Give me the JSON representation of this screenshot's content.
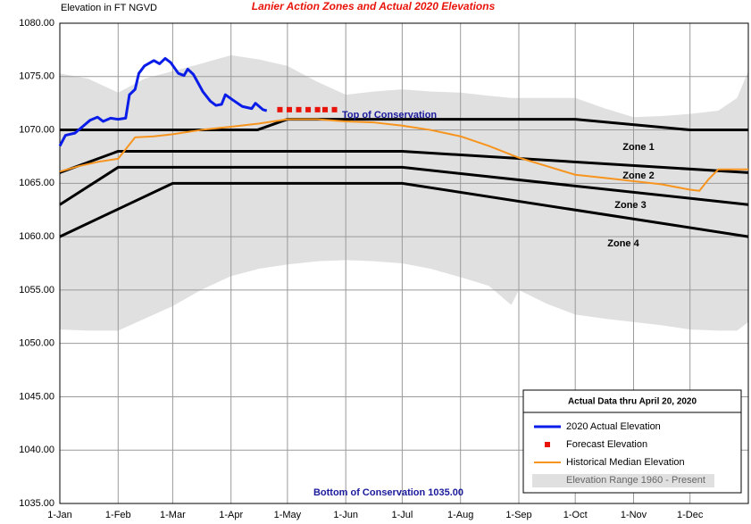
{
  "chart_data": {
    "type": "line",
    "title": "Lanier Action Zones and Actual 2020 Elevations",
    "y_label": "Elevation in FT NGVD",
    "xlim": [
      0,
      366
    ],
    "xticks": [
      {
        "value": 0,
        "label": "1-Jan"
      },
      {
        "value": 31,
        "label": "1-Feb"
      },
      {
        "value": 60,
        "label": "1-Mar"
      },
      {
        "value": 91,
        "label": "1-Apr"
      },
      {
        "value": 121,
        "label": "1-May"
      },
      {
        "value": 152,
        "label": "1-Jun"
      },
      {
        "value": 182,
        "label": "1-Jul"
      },
      {
        "value": 213,
        "label": "1-Aug"
      },
      {
        "value": 244,
        "label": "1-Sep"
      },
      {
        "value": 274,
        "label": "1-Oct"
      },
      {
        "value": 305,
        "label": "1-Nov"
      },
      {
        "value": 335,
        "label": "1-Dec"
      }
    ],
    "ylim": [
      1035,
      1080
    ],
    "yticks": [
      {
        "value": 1035,
        "label": "1035.00"
      },
      {
        "value": 1040,
        "label": "1040.00"
      },
      {
        "value": 1045,
        "label": "1045.00"
      },
      {
        "value": 1050,
        "label": "1050.00"
      },
      {
        "value": 1055,
        "label": "1055.00"
      },
      {
        "value": 1060,
        "label": "1060.00"
      },
      {
        "value": 1065,
        "label": "1065.00"
      },
      {
        "value": 1070,
        "label": "1070.00"
      },
      {
        "value": 1075,
        "label": "1075.00"
      },
      {
        "value": 1080,
        "label": "1080.00"
      }
    ],
    "grid": true,
    "legend": "lower right",
    "legend_title": "Actual Data thru April 20, 2020",
    "zone_lines": [
      {
        "color": "#000000",
        "x": [
          0,
          105,
          121,
          274,
          335,
          366
        ],
        "values": [
          1070,
          1070,
          1071,
          1071,
          1070,
          1070
        ]
      },
      {
        "color": "#000000",
        "x": [
          0,
          31,
          182,
          366
        ],
        "values": [
          1066,
          1068,
          1068,
          1066
        ]
      },
      {
        "color": "#000000",
        "x": [
          0,
          31,
          182,
          366
        ],
        "values": [
          1063,
          1066.5,
          1066.5,
          1063
        ]
      },
      {
        "color": "#000000",
        "x": [
          0,
          60,
          182,
          366
        ],
        "values": [
          1060,
          1065,
          1065,
          1060
        ]
      }
    ],
    "annotations": [
      "Top of Conservation",
      "Zone 1",
      "Zone 2",
      "Zone 3",
      "Zone 4",
      "Bottom of Conservation 1035.00"
    ],
    "series": [
      {
        "name": "2020 Actual Elevation",
        "color": "#0a1de8",
        "style": "line",
        "x": [
          0,
          3,
          8,
          12,
          16,
          20,
          23,
          27,
          31,
          35,
          37,
          40,
          42,
          45,
          50,
          53,
          56,
          59,
          63,
          66,
          68,
          71,
          76,
          80,
          83,
          86,
          88,
          92,
          97,
          102,
          104,
          108,
          110
        ],
        "values": [
          1068.5,
          1069.5,
          1069.7,
          1070.3,
          1070.9,
          1071.2,
          1070.8,
          1071.1,
          1071.0,
          1071.1,
          1073.3,
          1073.8,
          1075.3,
          1076.0,
          1076.5,
          1076.2,
          1076.7,
          1076.3,
          1075.3,
          1075.1,
          1075.7,
          1075.2,
          1073.6,
          1072.7,
          1072.3,
          1072.4,
          1073.3,
          1072.8,
          1072.2,
          1072.0,
          1072.5,
          1071.9,
          1071.8
        ]
      },
      {
        "name": "Forecast Elevation",
        "color": "#e8140a",
        "style": "square",
        "x": [
          117,
          122,
          127,
          132,
          137,
          141,
          146
        ],
        "values": [
          1071.9,
          1071.9,
          1071.9,
          1071.9,
          1071.9,
          1071.9,
          1071.9
        ]
      },
      {
        "name": "Historical Median Elevation",
        "color": "#f7941d",
        "style": "line",
        "x": [
          0,
          10,
          20,
          31,
          40,
          50,
          60,
          75,
          91,
          106,
          121,
          137,
          152,
          167,
          182,
          197,
          213,
          228,
          244,
          259,
          274,
          290,
          305,
          320,
          335,
          340,
          345,
          350,
          358,
          366
        ],
        "values": [
          1066.1,
          1066.6,
          1067.0,
          1067.3,
          1069.3,
          1069.4,
          1069.6,
          1070.0,
          1070.3,
          1070.6,
          1071.0,
          1071.0,
          1070.8,
          1070.7,
          1070.4,
          1070.0,
          1069.4,
          1068.5,
          1067.4,
          1066.6,
          1065.8,
          1065.5,
          1065.2,
          1064.9,
          1064.4,
          1064.3,
          1065.4,
          1066.3,
          1066.3,
          1066.3
        ]
      },
      {
        "name": "Elevation Range 1960 - Present",
        "color": "#e0e0e0",
        "style": "area",
        "x": [
          0,
          15,
          31,
          45,
          60,
          75,
          91,
          106,
          121,
          137,
          152,
          167,
          182,
          197,
          213,
          228,
          240,
          244,
          259,
          274,
          290,
          305,
          320,
          335,
          350,
          360,
          366
        ],
        "high": [
          1075.3,
          1074.8,
          1073.5,
          1074.8,
          1075.5,
          1076.2,
          1077.0,
          1076.6,
          1076.0,
          1074.5,
          1073.3,
          1073.6,
          1073.8,
          1073.6,
          1073.5,
          1073.2,
          1073.0,
          1073.0,
          1073.0,
          1073.0,
          1072.0,
          1071.2,
          1071.3,
          1071.5,
          1071.8,
          1073.0,
          1075.5
        ],
        "low": [
          1051.3,
          1051.2,
          1051.2,
          1052.3,
          1053.5,
          1055.0,
          1056.3,
          1057.0,
          1057.4,
          1057.7,
          1057.8,
          1057.7,
          1057.5,
          1057.0,
          1056.2,
          1055.4,
          1053.6,
          1055.0,
          1053.7,
          1052.7,
          1052.3,
          1052.0,
          1051.7,
          1051.3,
          1051.2,
          1051.2,
          1052.0
        ]
      }
    ]
  }
}
